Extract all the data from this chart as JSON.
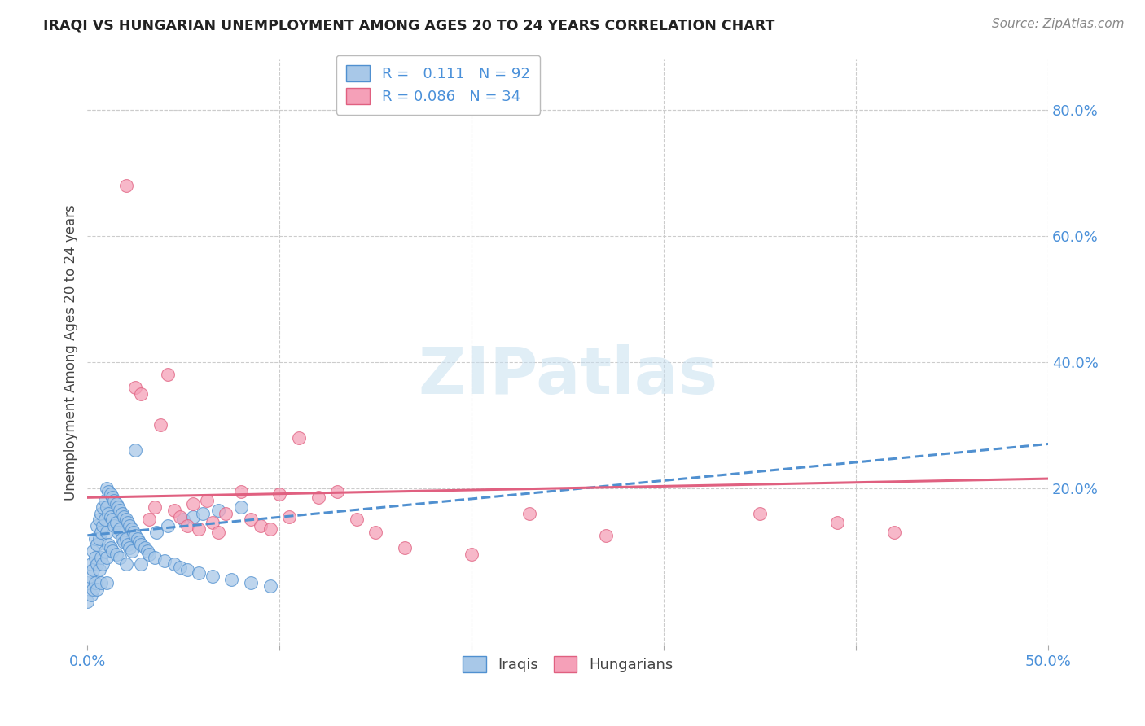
{
  "title": "IRAQI VS HUNGARIAN UNEMPLOYMENT AMONG AGES 20 TO 24 YEARS CORRELATION CHART",
  "source": "Source: ZipAtlas.com",
  "ylabel": "Unemployment Among Ages 20 to 24 years",
  "right_yticks": [
    "80.0%",
    "60.0%",
    "40.0%",
    "20.0%"
  ],
  "right_ytick_vals": [
    0.8,
    0.6,
    0.4,
    0.2
  ],
  "iraqis_color": "#a8c8e8",
  "hungarians_color": "#f5a0b8",
  "trendline_iraqis_color": "#5090d0",
  "trendline_iraqis_style": "--",
  "trendline_hungarians_color": "#e06080",
  "trendline_hungarians_style": "-",
  "xlim": [
    0.0,
    0.5
  ],
  "ylim": [
    -0.05,
    0.88
  ],
  "grid_color": "#cccccc",
  "watermark_color": "#c8e0f0",
  "iraqis_x": [
    0.0,
    0.0,
    0.001,
    0.002,
    0.002,
    0.003,
    0.003,
    0.003,
    0.004,
    0.004,
    0.004,
    0.005,
    0.005,
    0.005,
    0.005,
    0.006,
    0.006,
    0.006,
    0.007,
    0.007,
    0.007,
    0.007,
    0.008,
    0.008,
    0.008,
    0.009,
    0.009,
    0.009,
    0.01,
    0.01,
    0.01,
    0.01,
    0.01,
    0.011,
    0.011,
    0.011,
    0.012,
    0.012,
    0.012,
    0.013,
    0.013,
    0.013,
    0.014,
    0.014,
    0.015,
    0.015,
    0.015,
    0.016,
    0.016,
    0.017,
    0.017,
    0.017,
    0.018,
    0.018,
    0.019,
    0.019,
    0.02,
    0.02,
    0.02,
    0.021,
    0.021,
    0.022,
    0.022,
    0.023,
    0.023,
    0.024,
    0.025,
    0.025,
    0.026,
    0.027,
    0.028,
    0.028,
    0.03,
    0.031,
    0.032,
    0.035,
    0.036,
    0.04,
    0.042,
    0.045,
    0.048,
    0.05,
    0.052,
    0.055,
    0.058,
    0.06,
    0.065,
    0.068,
    0.075,
    0.08,
    0.085,
    0.095
  ],
  "iraqis_y": [
    0.05,
    0.02,
    0.06,
    0.08,
    0.03,
    0.1,
    0.07,
    0.04,
    0.12,
    0.09,
    0.05,
    0.14,
    0.11,
    0.08,
    0.04,
    0.15,
    0.12,
    0.07,
    0.16,
    0.13,
    0.09,
    0.05,
    0.17,
    0.14,
    0.08,
    0.18,
    0.15,
    0.1,
    0.2,
    0.17,
    0.13,
    0.09,
    0.05,
    0.195,
    0.16,
    0.11,
    0.19,
    0.155,
    0.105,
    0.185,
    0.15,
    0.1,
    0.18,
    0.14,
    0.175,
    0.145,
    0.095,
    0.17,
    0.13,
    0.165,
    0.135,
    0.09,
    0.16,
    0.12,
    0.155,
    0.115,
    0.15,
    0.12,
    0.08,
    0.145,
    0.11,
    0.14,
    0.105,
    0.135,
    0.1,
    0.13,
    0.26,
    0.125,
    0.12,
    0.115,
    0.11,
    0.08,
    0.105,
    0.1,
    0.095,
    0.09,
    0.13,
    0.085,
    0.14,
    0.08,
    0.075,
    0.15,
    0.07,
    0.155,
    0.065,
    0.16,
    0.06,
    0.165,
    0.055,
    0.17,
    0.05,
    0.045
  ],
  "hungarians_x": [
    0.02,
    0.025,
    0.028,
    0.032,
    0.035,
    0.038,
    0.042,
    0.045,
    0.048,
    0.052,
    0.055,
    0.058,
    0.062,
    0.065,
    0.068,
    0.072,
    0.08,
    0.085,
    0.09,
    0.095,
    0.1,
    0.105,
    0.11,
    0.12,
    0.13,
    0.14,
    0.15,
    0.165,
    0.2,
    0.23,
    0.27,
    0.35,
    0.39,
    0.42
  ],
  "hungarians_y": [
    0.68,
    0.36,
    0.35,
    0.15,
    0.17,
    0.3,
    0.38,
    0.165,
    0.155,
    0.14,
    0.175,
    0.135,
    0.18,
    0.145,
    0.13,
    0.16,
    0.195,
    0.15,
    0.14,
    0.135,
    0.19,
    0.155,
    0.28,
    0.185,
    0.195,
    0.15,
    0.13,
    0.105,
    0.095,
    0.16,
    0.125,
    0.16,
    0.145,
    0.13
  ],
  "trendline_iraqis_x0": 0.0,
  "trendline_iraqis_y0": 0.125,
  "trendline_iraqis_x1": 0.5,
  "trendline_iraqis_y1": 0.27,
  "trendline_hungarians_x0": 0.0,
  "trendline_hungarians_y0": 0.185,
  "trendline_hungarians_x1": 0.5,
  "trendline_hungarians_y1": 0.215
}
